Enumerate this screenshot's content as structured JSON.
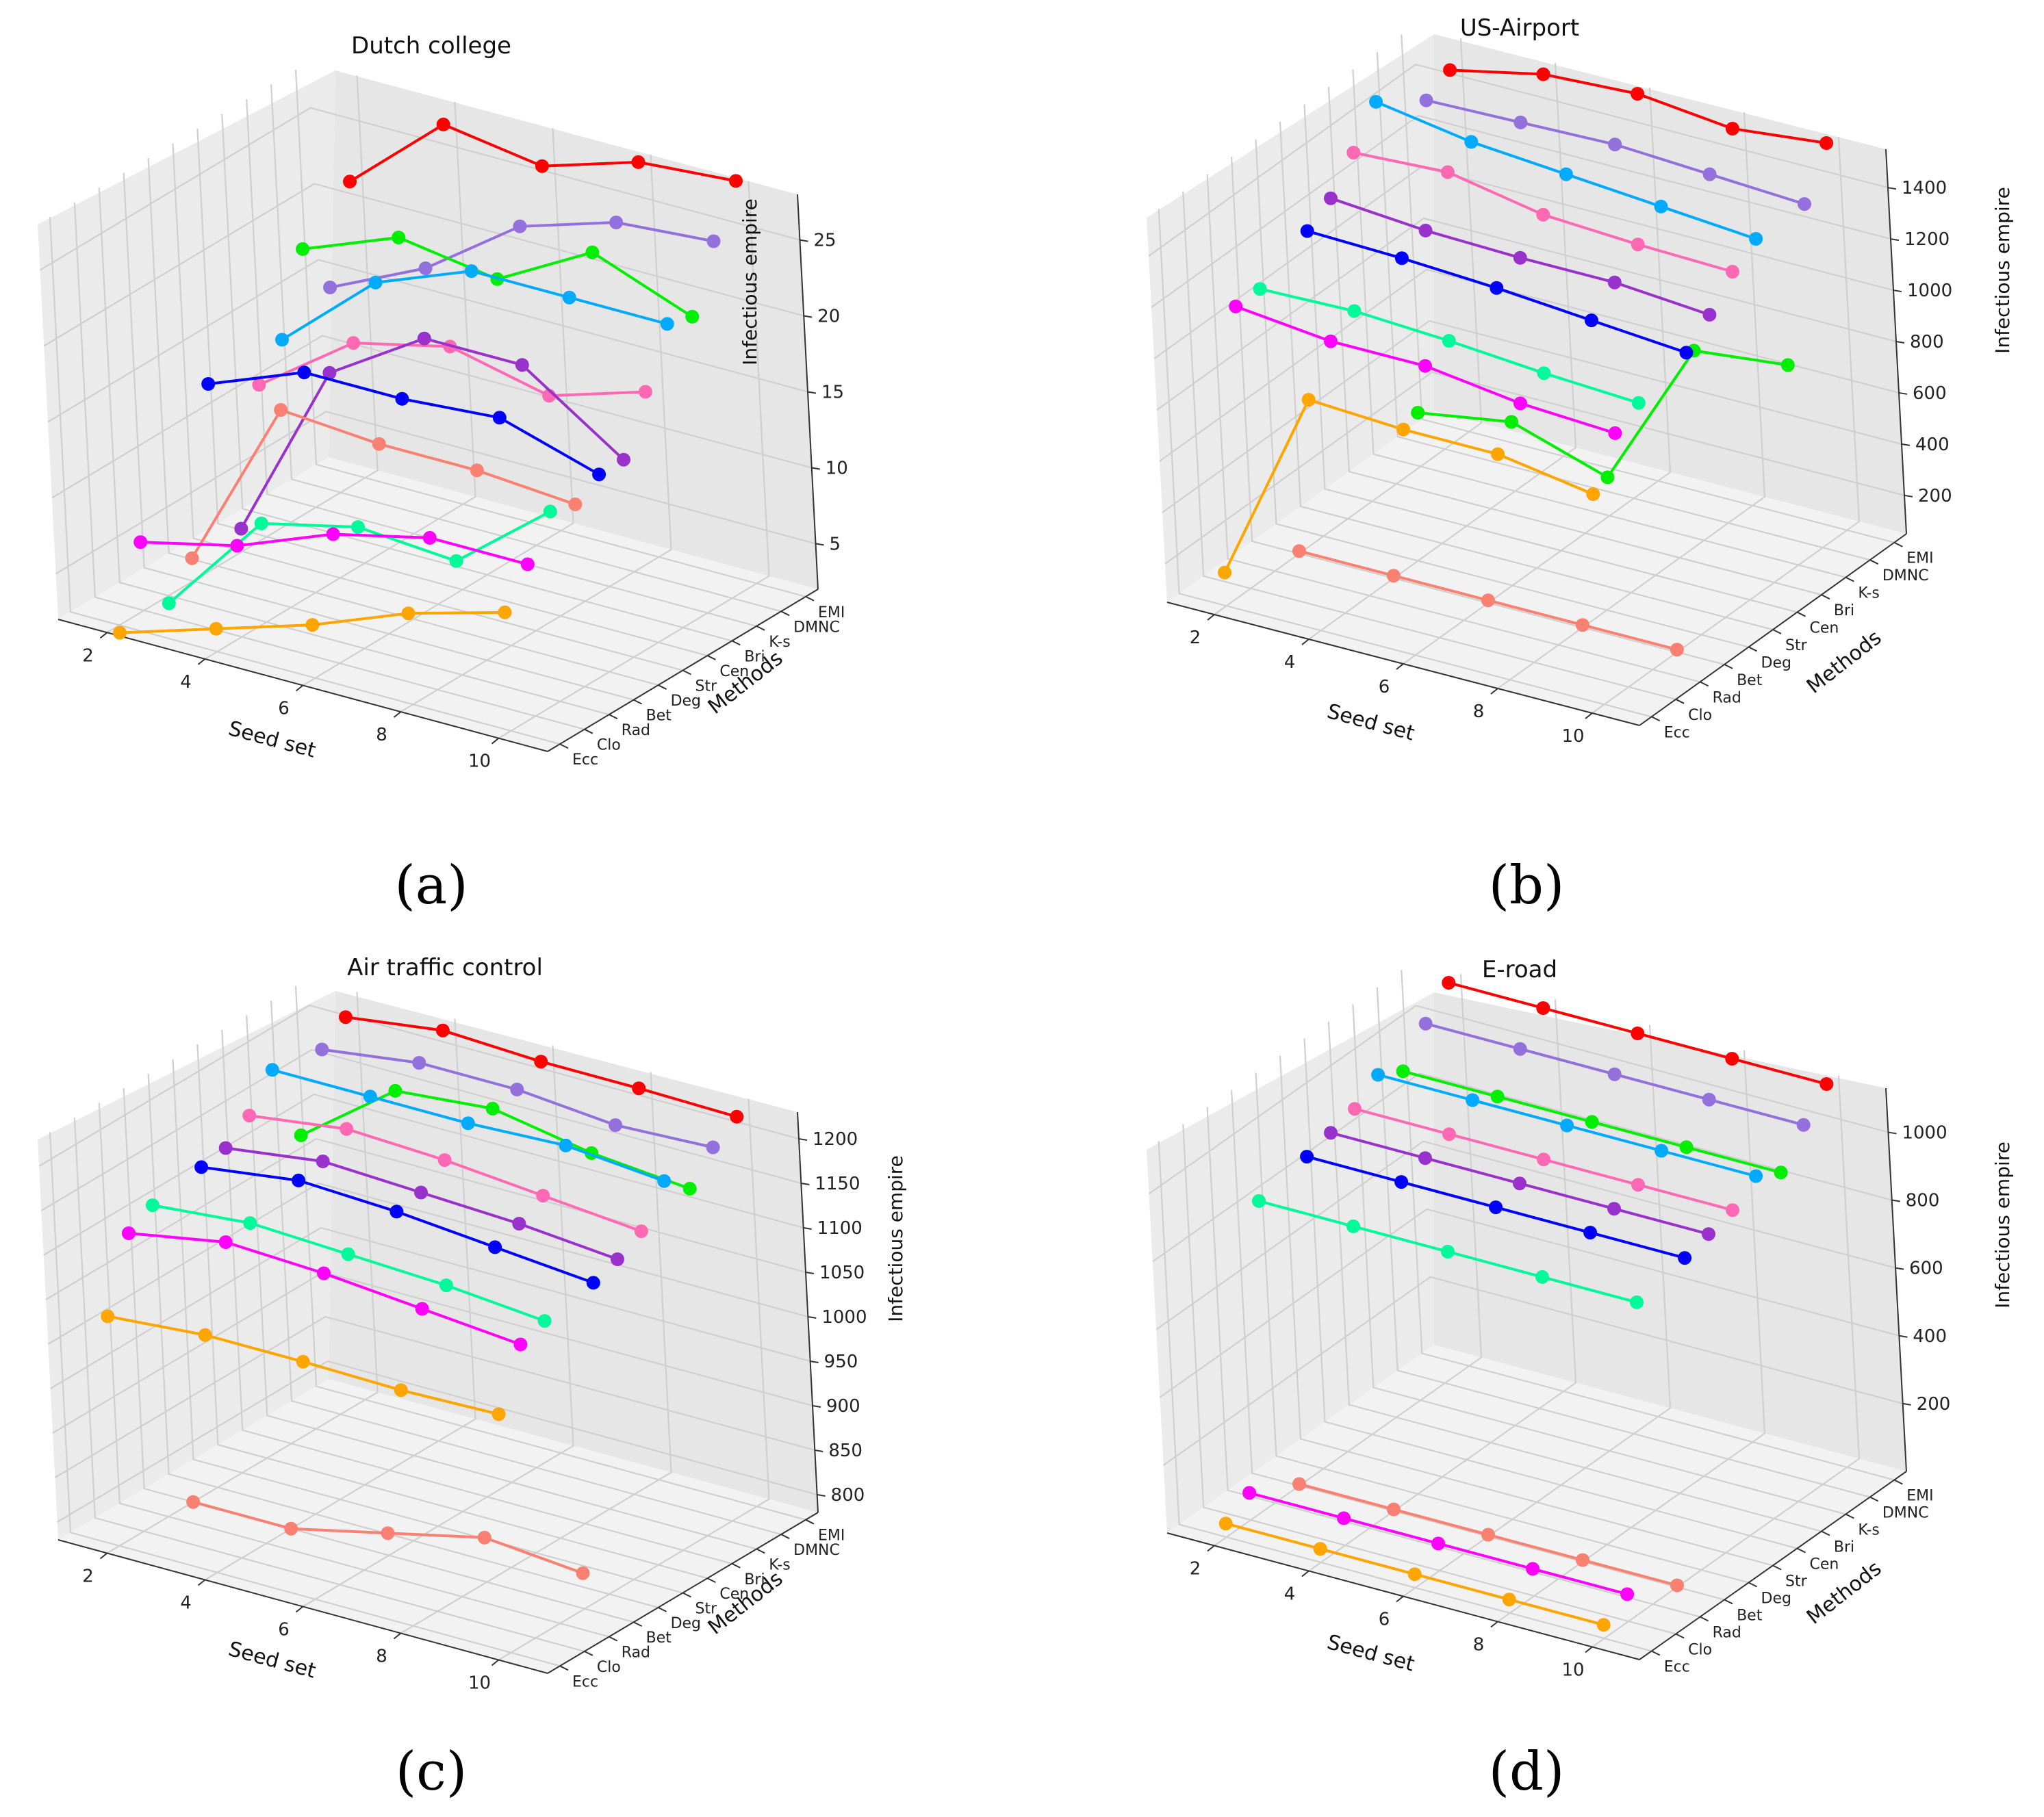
{
  "figure": {
    "panel_labels": [
      "(a)",
      "(b)",
      "(c)",
      "(d)"
    ]
  },
  "chart_data": [
    {
      "type": "line3d",
      "title": "Dutch college",
      "xlabel": "Seed set",
      "ylabel": "Methods",
      "zlabel": "Infectious empire",
      "x": [
        2,
        4,
        6,
        8,
        10
      ],
      "x_ticks": [
        "2",
        "4",
        "6",
        "8",
        "10"
      ],
      "categories": [
        "Ecc",
        "Clo",
        "Rad",
        "Bet",
        "Deg",
        "Str",
        "Cen",
        "Bri",
        "K-s",
        "DMNC",
        "EMI"
      ],
      "zlim": [
        2,
        28
      ],
      "z_ticks": [
        5,
        10,
        15,
        20,
        25
      ],
      "series": [
        {
          "name": "Ecc",
          "color": "#ffa500",
          "values": [
            1.5,
            3.5,
            5.5,
            8.0,
            9.8
          ]
        },
        {
          "name": "Clo",
          "color": "#ff00ff",
          "values": [
            6.5,
            8.0,
            10.5,
            12.0,
            12.0
          ]
        },
        {
          "name": "Rad",
          "color": "#00fa9a",
          "values": [
            1.5,
            8.5,
            10.0,
            9.5,
            14.5
          ]
        },
        {
          "name": "Bet",
          "color": "#fa8072",
          "values": [
            3.5,
            15.0,
            14.5,
            14.5,
            14.0
          ]
        },
        {
          "name": "Deg",
          "color": "#0000ff",
          "values": [
            14.0,
            16.5,
            16.5,
            17.0,
            15.0
          ]
        },
        {
          "name": "Str",
          "color": "#9932cc",
          "values": [
            3.5,
            15.5,
            19.5,
            19.5,
            15.0
          ]
        },
        {
          "name": "Cen",
          "color": "#ff69b4",
          "values": [
            12.0,
            16.5,
            18.0,
            16.5,
            18.5
          ]
        },
        {
          "name": "Bri",
          "color": "#00aaff",
          "values": [
            14.0,
            19.5,
            22.0,
            22.0,
            22.0
          ]
        },
        {
          "name": "K-s",
          "color": "#00ee00",
          "values": [
            19.0,
            21.5,
            20.5,
            24.0,
            21.5
          ]
        },
        {
          "name": "DMNC",
          "color": "#9370db",
          "values": [
            15.5,
            18.5,
            23.0,
            25.0,
            25.5
          ]
        },
        {
          "name": "EMI",
          "color": "#ff0000",
          "values": [
            21.5,
            27.0,
            26.0,
            28.0,
            28.5
          ]
        }
      ]
    },
    {
      "type": "line3d",
      "title": "US-Airport",
      "xlabel": "Seed set",
      "ylabel": "Methods",
      "zlabel": "Infectious empire",
      "x": [
        2,
        4,
        6,
        8,
        10
      ],
      "x_ticks": [
        "2",
        "4",
        "6",
        "8",
        "10"
      ],
      "categories": [
        "Ecc",
        "Clo",
        "Rad",
        "Bet",
        "Deg",
        "Str",
        "Cen",
        "Bri",
        "K-s",
        "DMNC",
        "EMI"
      ],
      "zlim": [
        50,
        1550
      ],
      "z_ticks": [
        200,
        400,
        600,
        800,
        1000,
        1200,
        1400
      ],
      "series": [
        {
          "name": "Ecc",
          "color": "#ffa500",
          "values": [
            180,
            950,
            930,
            930,
            870
          ]
        },
        {
          "name": "Clo",
          "color": "#ff00ff",
          "values": [
            1150,
            1110,
            1110,
            1060,
            1040
          ]
        },
        {
          "name": "Rad",
          "color": "#00fa9a",
          "values": [
            1150,
            1160,
            1140,
            1110,
            1090
          ]
        },
        {
          "name": "Bet",
          "color": "#fa8072",
          "values": [
            60,
            60,
            60,
            60,
            60
          ]
        },
        {
          "name": "Deg",
          "color": "#0000ff",
          "values": [
            1240,
            1230,
            1210,
            1180,
            1150
          ]
        },
        {
          "name": "Str",
          "color": "#9932cc",
          "values": [
            1300,
            1270,
            1260,
            1260,
            1230
          ]
        },
        {
          "name": "Cen",
          "color": "#ff69b4",
          "values": [
            1410,
            1430,
            1360,
            1340,
            1330
          ]
        },
        {
          "name": "Bri",
          "color": "#00aaff",
          "values": [
            1540,
            1480,
            1450,
            1420,
            1390
          ]
        },
        {
          "name": "K-s",
          "color": "#00ee00",
          "values": [
            260,
            320,
            200,
            790,
            830
          ]
        },
        {
          "name": "DMNC",
          "color": "#9370db",
          "values": [
            1410,
            1420,
            1430,
            1410,
            1390
          ]
        },
        {
          "name": "EMI",
          "color": "#ff0000",
          "values": [
            1460,
            1540,
            1560,
            1520,
            1560
          ]
        }
      ]
    },
    {
      "type": "line3d",
      "title": "Air traffic control",
      "xlabel": "Seed set",
      "ylabel": "Methods",
      "zlabel": "Infectious empire",
      "x": [
        2,
        4,
        6,
        8,
        10
      ],
      "x_ticks": [
        "2",
        "4",
        "6",
        "8",
        "10"
      ],
      "categories": [
        "Ecc",
        "Clo",
        "Rad",
        "Bet",
        "Deg",
        "Str",
        "Cen",
        "Bri",
        "K-s",
        "DMNC",
        "EMI"
      ],
      "zlim": [
        780,
        1230
      ],
      "z_ticks": [
        800,
        850,
        900,
        950,
        1000,
        1050,
        1100,
        1150,
        1200
      ],
      "series": [
        {
          "name": "Ecc",
          "color": "#ffa500",
          "values": [
            1038,
            1047,
            1047,
            1045,
            1048
          ]
        },
        {
          "name": "Clo",
          "color": "#ff00ff",
          "values": [
            1115,
            1135,
            1130,
            1120,
            1110
          ]
        },
        {
          "name": "Rad",
          "color": "#00fa9a",
          "values": [
            1130,
            1140,
            1135,
            1130,
            1120
          ]
        },
        {
          "name": "Bet",
          "color": "#fa8072",
          "values": [
            780,
            780,
            805,
            830,
            820
          ]
        },
        {
          "name": "Deg",
          "color": "#0000ff",
          "values": [
            1140,
            1155,
            1150,
            1140,
            1130
          ]
        },
        {
          "name": "Str",
          "color": "#9932cc",
          "values": [
            1145,
            1160,
            1155,
            1150,
            1140
          ]
        },
        {
          "name": "Cen",
          "color": "#ff69b4",
          "values": [
            1165,
            1180,
            1175,
            1165,
            1155
          ]
        },
        {
          "name": "Bri",
          "color": "#00aaff",
          "values": [
            1200,
            1200,
            1200,
            1205,
            1195
          ]
        },
        {
          "name": "K-s",
          "color": "#00ee00",
          "values": [
            1110,
            1190,
            1200,
            1180,
            1170
          ]
        },
        {
          "name": "DMNC",
          "color": "#9370db",
          "values": [
            1190,
            1205,
            1205,
            1195,
            1200
          ]
        },
        {
          "name": "EMI",
          "color": "#ff0000",
          "values": [
            1210,
            1225,
            1220,
            1220,
            1218
          ]
        }
      ]
    },
    {
      "type": "line3d",
      "title": "E-road",
      "xlabel": "Seed set",
      "ylabel": "Methods",
      "zlabel": "Infectious empire",
      "x": [
        2,
        4,
        6,
        8,
        10
      ],
      "x_ticks": [
        "2",
        "4",
        "6",
        "8",
        "10"
      ],
      "categories": [
        "Ecc",
        "Clo",
        "Rad",
        "Bet",
        "Deg",
        "Str",
        "Cen",
        "Bri",
        "K-s",
        "DMNC",
        "EMI"
      ],
      "zlim": [
        0,
        1130
      ],
      "z_ticks": [
        200,
        400,
        600,
        800,
        1000
      ],
      "series": [
        {
          "name": "Ecc",
          "color": "#ffa500",
          "values": [
            40,
            40,
            40,
            40,
            40
          ]
        },
        {
          "name": "Clo",
          "color": "#ff00ff",
          "values": [
            80,
            80,
            80,
            80,
            80
          ]
        },
        {
          "name": "Rad",
          "color": "#00fa9a",
          "values": [
            890,
            890,
            890,
            890,
            890
          ]
        },
        {
          "name": "Bet",
          "color": "#fa8072",
          "values": [
            5,
            5,
            5,
            5,
            5
          ]
        },
        {
          "name": "Deg",
          "color": "#0000ff",
          "values": [
            920,
            920,
            920,
            920,
            920
          ]
        },
        {
          "name": "Str",
          "color": "#9932cc",
          "values": [
            940,
            940,
            940,
            940,
            940
          ]
        },
        {
          "name": "Cen",
          "color": "#ff69b4",
          "values": [
            960,
            960,
            960,
            960,
            960
          ]
        },
        {
          "name": "Bri",
          "color": "#00aaff",
          "values": [
            1010,
            1010,
            1010,
            1010,
            1010
          ]
        },
        {
          "name": "K-s",
          "color": "#00ee00",
          "values": [
            970,
            970,
            970,
            970,
            970
          ]
        },
        {
          "name": "DMNC",
          "color": "#9370db",
          "values": [
            1060,
            1060,
            1060,
            1060,
            1060
          ]
        },
        {
          "name": "EMI",
          "color": "#ff0000",
          "values": [
            1130,
            1130,
            1130,
            1130,
            1130
          ]
        }
      ]
    }
  ]
}
